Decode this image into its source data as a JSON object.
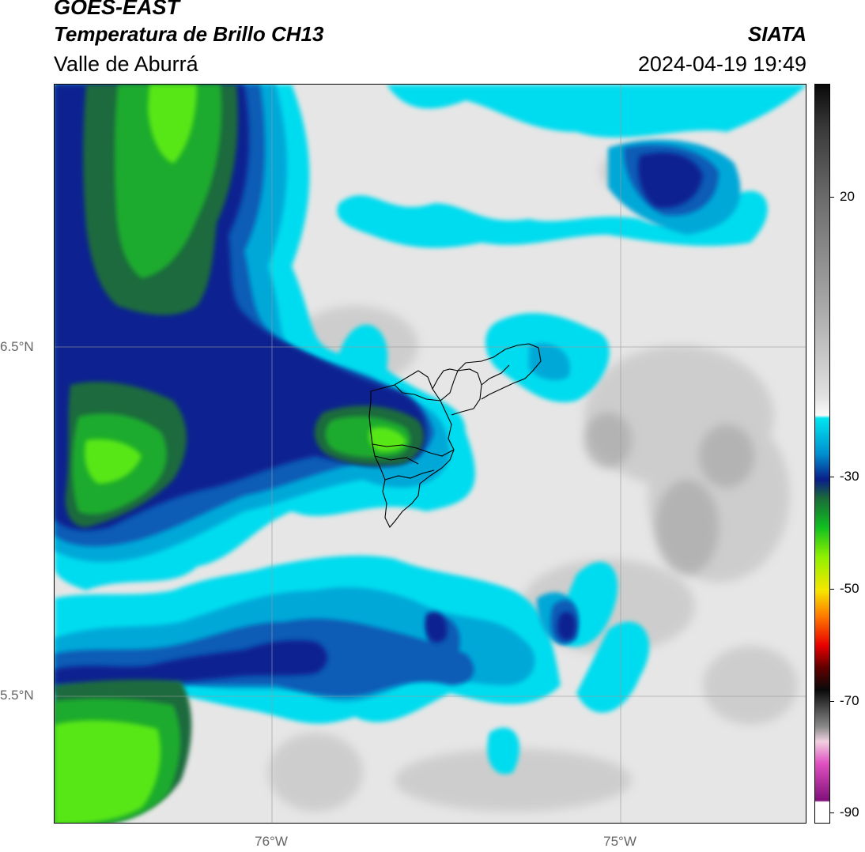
{
  "header": {
    "title": "GOES-EAST",
    "subtitle": "Temperatura de Brillo CH13",
    "region": "Valle de Aburrá",
    "organization": "SIATA",
    "timestamp": "2024-04-19 19:49"
  },
  "map": {
    "lat_labels": [
      "6.5°N",
      "5.5°N"
    ],
    "lon_labels": [
      "76°W",
      "75°W"
    ],
    "palette": {
      "warm_light": "#e8e8e8",
      "warm_mid": "#c4c4c4",
      "cyan": "#00d9ee",
      "cyan_dark": "#00a6d6",
      "blue": "#0a5ab4",
      "navy": "#0a1f8c",
      "dark_green": "#1a6a3a",
      "green": "#19a82c",
      "bright_green": "#52e612",
      "boundary": "#000000"
    }
  },
  "colorbar": {
    "labels": [
      "20",
      "-30",
      "-50",
      "-70",
      "-90"
    ],
    "range": [
      -90,
      35
    ]
  }
}
